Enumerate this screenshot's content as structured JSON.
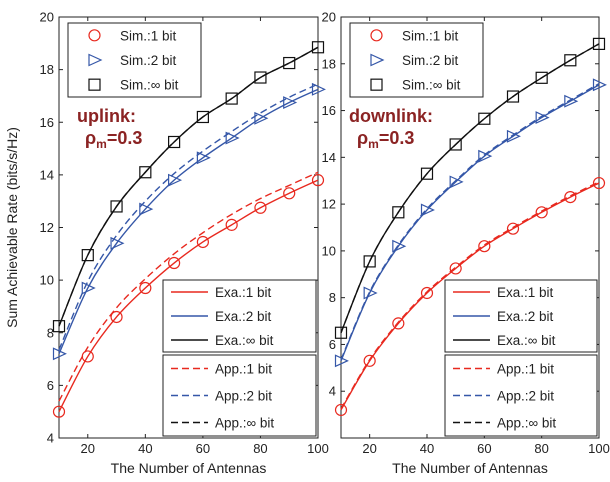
{
  "chart_data": [
    {
      "type": "line",
      "panel": "left",
      "annotation": {
        "title": "uplink:",
        "rho": "ρ",
        "sub": "m",
        "value": "=0.3"
      },
      "xlabel": "The Number of Antennas",
      "ylabel": "Sum Achievable Rate (bits/s/Hz)",
      "xlim": [
        10,
        100
      ],
      "ylim": [
        4,
        20
      ],
      "xticks": [
        20,
        40,
        60,
        80,
        100
      ],
      "yticks": [
        4,
        6,
        8,
        10,
        12,
        14,
        16,
        18,
        20
      ],
      "x": [
        10,
        20,
        30,
        40,
        50,
        60,
        70,
        80,
        90,
        100
      ],
      "series": [
        {
          "name": "Sim.:1 bit",
          "kind": "sim",
          "marker": "circle",
          "color": "#e8291f",
          "values": [
            5.0,
            7.1,
            8.6,
            9.7,
            10.65,
            11.45,
            12.1,
            12.75,
            13.3,
            13.8
          ]
        },
        {
          "name": "Sim.:2 bit",
          "kind": "sim",
          "marker": "triangle",
          "color": "#3557a8",
          "values": [
            7.2,
            9.7,
            11.4,
            12.7,
            13.8,
            14.65,
            15.4,
            16.15,
            16.75,
            17.25
          ]
        },
        {
          "name": "Sim.:∞ bit",
          "kind": "sim",
          "marker": "square",
          "color": "#111111",
          "values": [
            8.25,
            10.95,
            12.8,
            14.1,
            15.25,
            16.2,
            16.9,
            17.7,
            18.25,
            18.85
          ]
        },
        {
          "name": "Exa.:1 bit",
          "kind": "exa",
          "dash": "solid",
          "color": "#e8291f",
          "values": [
            5.0,
            7.1,
            8.6,
            9.7,
            10.65,
            11.45,
            12.1,
            12.75,
            13.3,
            13.8
          ]
        },
        {
          "name": "Exa.:2 bit",
          "kind": "exa",
          "dash": "solid",
          "color": "#3557a8",
          "values": [
            7.2,
            9.7,
            11.4,
            12.7,
            13.8,
            14.65,
            15.4,
            16.15,
            16.75,
            17.25
          ]
        },
        {
          "name": "Exa.:∞ bit",
          "kind": "exa",
          "dash": "solid",
          "color": "#111111",
          "values": [
            8.25,
            10.95,
            12.8,
            14.1,
            15.25,
            16.2,
            16.9,
            17.7,
            18.25,
            18.85
          ]
        },
        {
          "name": "App.:1 bit",
          "kind": "app",
          "dash": "dashed",
          "color": "#e8291f",
          "values": [
            5.4,
            7.45,
            8.95,
            10.05,
            11.0,
            11.8,
            12.5,
            13.1,
            13.6,
            14.1
          ]
        },
        {
          "name": "App.:2 bit",
          "kind": "app",
          "dash": "dashed",
          "color": "#3557a8",
          "values": [
            7.35,
            9.95,
            11.7,
            13.0,
            14.05,
            14.9,
            15.65,
            16.35,
            16.95,
            17.45
          ]
        },
        {
          "name": "App.:∞ bit",
          "kind": "app",
          "dash": "dashed",
          "color": "#111111",
          "values": [
            8.25,
            10.95,
            12.8,
            14.1,
            15.25,
            16.2,
            16.9,
            17.7,
            18.25,
            18.85
          ]
        }
      ]
    },
    {
      "type": "line",
      "panel": "right",
      "annotation": {
        "title": "downlink:",
        "rho": "ρ",
        "sub": "m",
        "value": "=0.3"
      },
      "xlabel": "The Number of Antennas",
      "ylabel": "",
      "xlim": [
        10,
        100
      ],
      "ylim": [
        2,
        20
      ],
      "xticks": [
        20,
        40,
        60,
        80,
        100
      ],
      "yticks": [
        4,
        6,
        8,
        10,
        12,
        14,
        16,
        18,
        20
      ],
      "x": [
        10,
        20,
        30,
        40,
        50,
        60,
        70,
        80,
        90,
        100
      ],
      "series": [
        {
          "name": "Sim.:1 bit",
          "kind": "sim",
          "marker": "circle",
          "color": "#e8291f",
          "values": [
            3.2,
            5.3,
            6.9,
            8.2,
            9.25,
            10.2,
            10.95,
            11.65,
            12.3,
            12.9
          ]
        },
        {
          "name": "Sim.:2 bit",
          "kind": "sim",
          "marker": "triangle",
          "color": "#3557a8",
          "values": [
            5.3,
            8.2,
            10.2,
            11.75,
            12.95,
            14.05,
            14.9,
            15.7,
            16.4,
            17.1
          ]
        },
        {
          "name": "Sim.:∞ bit",
          "kind": "sim",
          "marker": "square",
          "color": "#111111",
          "values": [
            6.5,
            9.55,
            11.65,
            13.3,
            14.55,
            15.65,
            16.6,
            17.4,
            18.15,
            18.85
          ]
        },
        {
          "name": "Exa.:1 bit",
          "kind": "exa",
          "dash": "solid",
          "color": "#e8291f",
          "values": [
            3.2,
            5.3,
            6.9,
            8.2,
            9.25,
            10.2,
            10.95,
            11.65,
            12.3,
            12.9
          ]
        },
        {
          "name": "Exa.:2 bit",
          "kind": "exa",
          "dash": "solid",
          "color": "#3557a8",
          "values": [
            5.3,
            8.2,
            10.2,
            11.75,
            12.95,
            14.05,
            14.9,
            15.7,
            16.4,
            17.1
          ]
        },
        {
          "name": "Exa.:∞ bit",
          "kind": "exa",
          "dash": "solid",
          "color": "#111111",
          "values": [
            6.5,
            9.55,
            11.65,
            13.3,
            14.55,
            15.65,
            16.6,
            17.4,
            18.15,
            18.85
          ]
        },
        {
          "name": "App.:1 bit",
          "kind": "app",
          "dash": "dashed",
          "color": "#e8291f",
          "values": [
            3.25,
            5.35,
            6.95,
            8.25,
            9.3,
            10.25,
            11.0,
            11.7,
            12.35,
            12.95
          ]
        },
        {
          "name": "App.:2 bit",
          "kind": "app",
          "dash": "dashed",
          "color": "#3557a8",
          "values": [
            5.35,
            8.25,
            10.25,
            11.8,
            13.0,
            14.1,
            14.95,
            15.75,
            16.45,
            17.15
          ]
        },
        {
          "name": "App.:∞ bit",
          "kind": "app",
          "dash": "dashed",
          "color": "#111111",
          "values": [
            6.5,
            9.55,
            11.65,
            13.3,
            14.55,
            15.65,
            16.6,
            17.4,
            18.15,
            18.85
          ]
        }
      ]
    }
  ]
}
